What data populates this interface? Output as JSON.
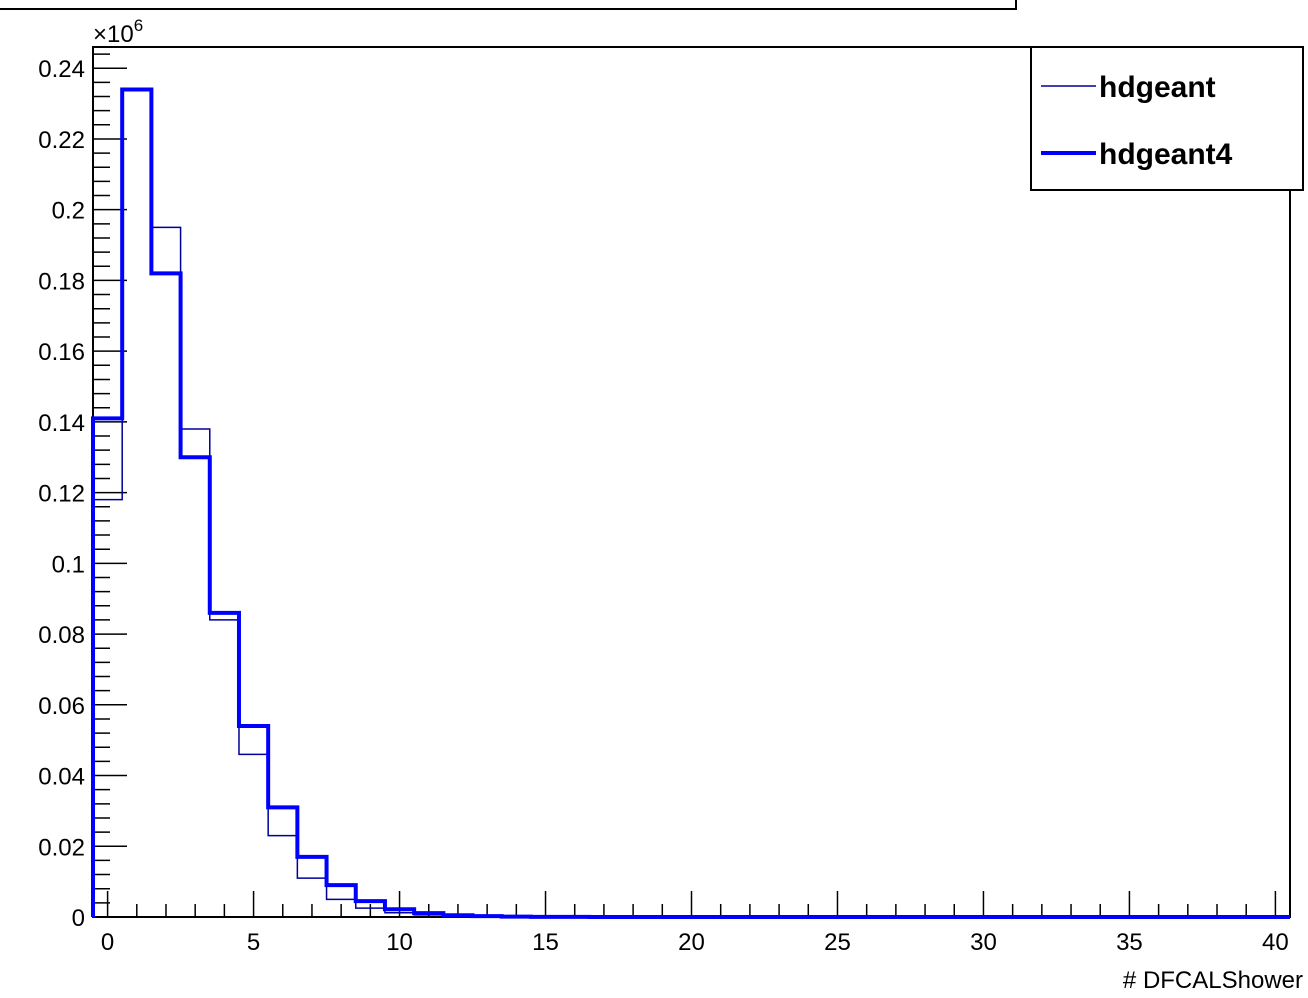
{
  "chart_data": {
    "type": "histogram",
    "title": "",
    "xlabel": "# DFCALShower",
    "ylabel": "",
    "y_multiplier": "×10",
    "y_multiplier_exponent": "6",
    "xlim": [
      -0.5,
      40.5
    ],
    "ylim": [
      0,
      0.246
    ],
    "x_ticks": [
      0,
      5,
      10,
      15,
      20,
      25,
      30,
      35,
      40
    ],
    "x_tick_labels": [
      "0",
      "5",
      "10",
      "15",
      "20",
      "25",
      "30",
      "35",
      "40"
    ],
    "y_ticks": [
      0,
      0.02,
      0.04,
      0.06,
      0.08,
      0.1,
      0.12,
      0.14,
      0.16,
      0.18,
      0.2,
      0.22,
      0.24
    ],
    "y_tick_labels": [
      "0",
      "0.02",
      "0.04",
      "0.06",
      "0.08",
      "0.1",
      "0.12",
      "0.14",
      "0.16",
      "0.18",
      "0.2",
      "0.22",
      "0.24"
    ],
    "bin_edges": [
      -0.5,
      0.5,
      1.5,
      2.5,
      3.5,
      4.5,
      5.5,
      6.5,
      7.5,
      8.5,
      9.5,
      10.5,
      11.5,
      12.5,
      13.5,
      14.5,
      15.5,
      16.5,
      17.5,
      18.5,
      19.5,
      20.5,
      21.5,
      22.5,
      23.5,
      24.5,
      25.5,
      26.5,
      27.5,
      28.5,
      29.5,
      30.5,
      31.5,
      32.5,
      33.5,
      34.5,
      35.5,
      36.5,
      37.5,
      38.5,
      39.5,
      40.5
    ],
    "legend_position": "top-right",
    "series": [
      {
        "name": "hdgeant",
        "color": "#000099",
        "line_width": "thin",
        "values": [
          0.118,
          0.234,
          0.195,
          0.138,
          0.084,
          0.046,
          0.023,
          0.011,
          0.005,
          0.0025,
          0.0012,
          0.0006,
          0.0003,
          0.00015,
          7e-05,
          3e-05,
          1e-05,
          0,
          0,
          0,
          0,
          0,
          0,
          0,
          0,
          0,
          0,
          0,
          0,
          0,
          0,
          0,
          0,
          0,
          0,
          0,
          0,
          0,
          0,
          0,
          0
        ]
      },
      {
        "name": "hdgeant4",
        "color": "#0000ff",
        "line_width": "thick",
        "values": [
          0.141,
          0.234,
          0.182,
          0.13,
          0.086,
          0.054,
          0.031,
          0.017,
          0.009,
          0.0045,
          0.0022,
          0.0011,
          0.0005,
          0.00025,
          0.0001,
          5e-05,
          2e-05,
          0,
          0,
          0,
          0,
          0,
          0,
          0,
          0,
          0,
          0,
          0,
          0,
          0,
          0,
          0,
          0,
          0,
          0,
          0,
          0,
          0,
          0,
          0,
          0
        ]
      }
    ]
  }
}
